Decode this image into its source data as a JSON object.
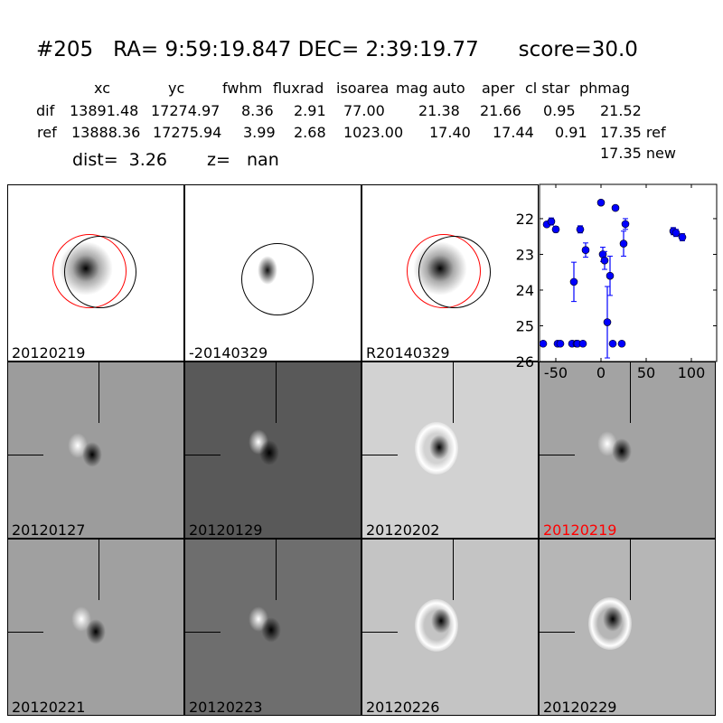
{
  "header": {
    "title": "#205   RA= 9:59:19.847 DEC= 2:39:19.77      score=30.0",
    "columns": [
      "xc",
      "yc",
      "fwhm",
      "fluxrad",
      "isoarea",
      "mag auto",
      "aper",
      "cl star",
      "phmag"
    ],
    "rows": [
      {
        "label": "dif",
        "values": [
          "13891.48",
          "17274.97",
          "8.36",
          "2.91",
          "77.00",
          "21.38",
          "21.66",
          "0.95",
          "21.52"
        ]
      },
      {
        "label": "ref",
        "values": [
          "13888.36",
          "17275.94",
          "3.99",
          "2.68",
          "1023.00",
          "17.40",
          "17.44",
          "0.91",
          "17.35 ref"
        ]
      }
    ],
    "new_phmag": "17.35 new",
    "dist": "dist=  3.26",
    "z": "z=   nan"
  },
  "top_panels": [
    {
      "label": "20120219",
      "bg": "#ffffff"
    },
    {
      "label": "-20140329",
      "bg": "#b4b4b4"
    },
    {
      "label": "R20140329",
      "bg": "#ffffff"
    }
  ],
  "stamps": [
    {
      "label": "20120127",
      "bg": "#9c9c9c",
      "highlight": false
    },
    {
      "label": "20120129",
      "bg": "#595959",
      "highlight": false
    },
    {
      "label": "20120202",
      "bg": "#d2d2d2",
      "highlight": false
    },
    {
      "label": "20120219",
      "bg": "#a3a3a3",
      "highlight": true
    },
    {
      "label": "20120221",
      "bg": "#a0a0a0",
      "highlight": false
    },
    {
      "label": "20120223",
      "bg": "#6e6e6e",
      "highlight": false
    },
    {
      "label": "20120226",
      "bg": "#c4c4c4",
      "highlight": false
    },
    {
      "label": "20120229",
      "bg": "#b6b6b6",
      "highlight": false
    }
  ],
  "colors": {
    "highlight": "#ff0000",
    "points": "#0000ff",
    "ref_circle": "#ff0000",
    "dif_circle": "#000000"
  },
  "chart_data": {
    "type": "scatter",
    "xlim": [
      -68,
      128
    ],
    "ylim": [
      26,
      21.04
    ],
    "y_inverted": true,
    "xticks": [
      -50,
      0,
      50,
      100
    ],
    "yticks": [
      22,
      23,
      24,
      25,
      26
    ],
    "grid": false,
    "points": [
      {
        "x": -60,
        "y": 22.16,
        "err": 0.06
      },
      {
        "x": -55,
        "y": 22.08,
        "err": 0.1
      },
      {
        "x": -50,
        "y": 22.3,
        "err": 0.08
      },
      {
        "x": -30,
        "y": 23.77,
        "err": 0.55
      },
      {
        "x": -23,
        "y": 22.3,
        "err": 0.1
      },
      {
        "x": -17,
        "y": 22.88,
        "err": 0.2
      },
      {
        "x": 0,
        "y": 21.55,
        "err": 0.03
      },
      {
        "x": 2,
        "y": 23.0,
        "err": 0.2
      },
      {
        "x": 4,
        "y": 23.17,
        "err": 0.25
      },
      {
        "x": 7,
        "y": 24.9,
        "err": 1.0
      },
      {
        "x": 10,
        "y": 23.6,
        "err": 0.55
      },
      {
        "x": 16,
        "y": 21.7,
        "err": 0.03
      },
      {
        "x": 25,
        "y": 22.7,
        "err": 0.35
      },
      {
        "x": 27,
        "y": 22.15,
        "err": 0.15
      },
      {
        "x": 80,
        "y": 22.35,
        "err": 0.1
      },
      {
        "x": 83,
        "y": 22.4,
        "err": 0.1
      },
      {
        "x": 90,
        "y": 22.52,
        "err": 0.1
      },
      {
        "x": -64,
        "y": 25.5,
        "err": 0.05
      },
      {
        "x": -48,
        "y": 25.5,
        "err": 0.05
      },
      {
        "x": -45,
        "y": 25.5,
        "err": 0.05
      },
      {
        "x": -32,
        "y": 25.5,
        "err": 0.05
      },
      {
        "x": -27,
        "y": 25.5,
        "err": 0.05
      },
      {
        "x": -26,
        "y": 25.5,
        "err": 0.05
      },
      {
        "x": -20,
        "y": 25.5,
        "err": 0.05
      },
      {
        "x": 13,
        "y": 25.5,
        "err": 0.05
      },
      {
        "x": 23,
        "y": 25.5,
        "err": 0.05
      }
    ]
  }
}
